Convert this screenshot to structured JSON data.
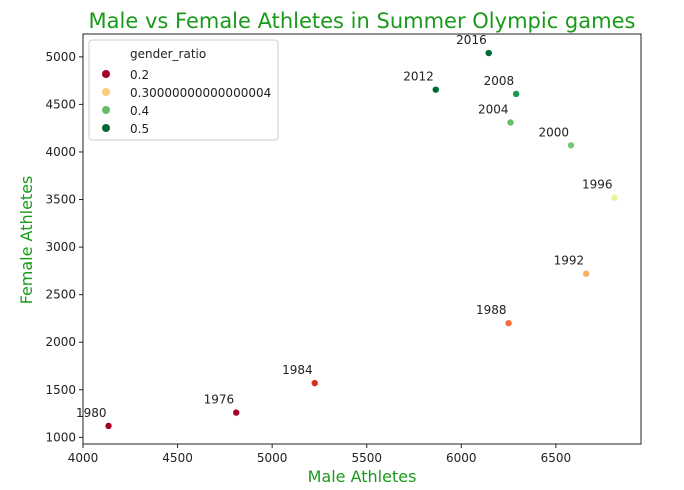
{
  "chart_data": {
    "type": "scatter",
    "title": "Male vs Female Athletes in Summer Olympic games",
    "xlabel": "Male Athletes",
    "ylabel": "Female Athletes",
    "xlim": [
      4000,
      6950
    ],
    "ylim": [
      930,
      5240
    ],
    "xticks": [
      4000,
      4500,
      5000,
      5500,
      6000,
      6500
    ],
    "yticks": [
      1000,
      1500,
      2000,
      2500,
      3000,
      3500,
      4000,
      4500,
      5000
    ],
    "title_color": "#1a9a1a",
    "label_color": "#1a9a1a",
    "grid": false,
    "legend_position": "top-left",
    "hue": "gender_ratio",
    "legend": {
      "title": "gender_ratio",
      "entries": [
        {
          "label": "0.2",
          "color": "#a50026"
        },
        {
          "label": "0.30000000000000004",
          "color": "#fdcb7d"
        },
        {
          "label": "0.4",
          "color": "#66bd63"
        },
        {
          "label": "0.5",
          "color": "#006837"
        }
      ]
    },
    "points": [
      {
        "label": "1976",
        "x": 4810,
        "y": 1260,
        "color": "#a50026"
      },
      {
        "label": "1980",
        "x": 4135,
        "y": 1120,
        "color": "#a50026"
      },
      {
        "label": "1984",
        "x": 5225,
        "y": 1570,
        "color": "#d73027"
      },
      {
        "label": "1988",
        "x": 6250,
        "y": 2200,
        "color": "#f46d43"
      },
      {
        "label": "1992",
        "x": 6660,
        "y": 2720,
        "color": "#fdae61"
      },
      {
        "label": "1996",
        "x": 6810,
        "y": 3520,
        "color": "#e6f598"
      },
      {
        "label": "2000",
        "x": 6580,
        "y": 4070,
        "color": "#78c679"
      },
      {
        "label": "2004",
        "x": 6260,
        "y": 4310,
        "color": "#66bd63"
      },
      {
        "label": "2008",
        "x": 6290,
        "y": 4610,
        "color": "#1a9850"
      },
      {
        "label": "2012",
        "x": 5865,
        "y": 4655,
        "color": "#006837"
      },
      {
        "label": "2016",
        "x": 6145,
        "y": 5040,
        "color": "#006837"
      }
    ]
  }
}
